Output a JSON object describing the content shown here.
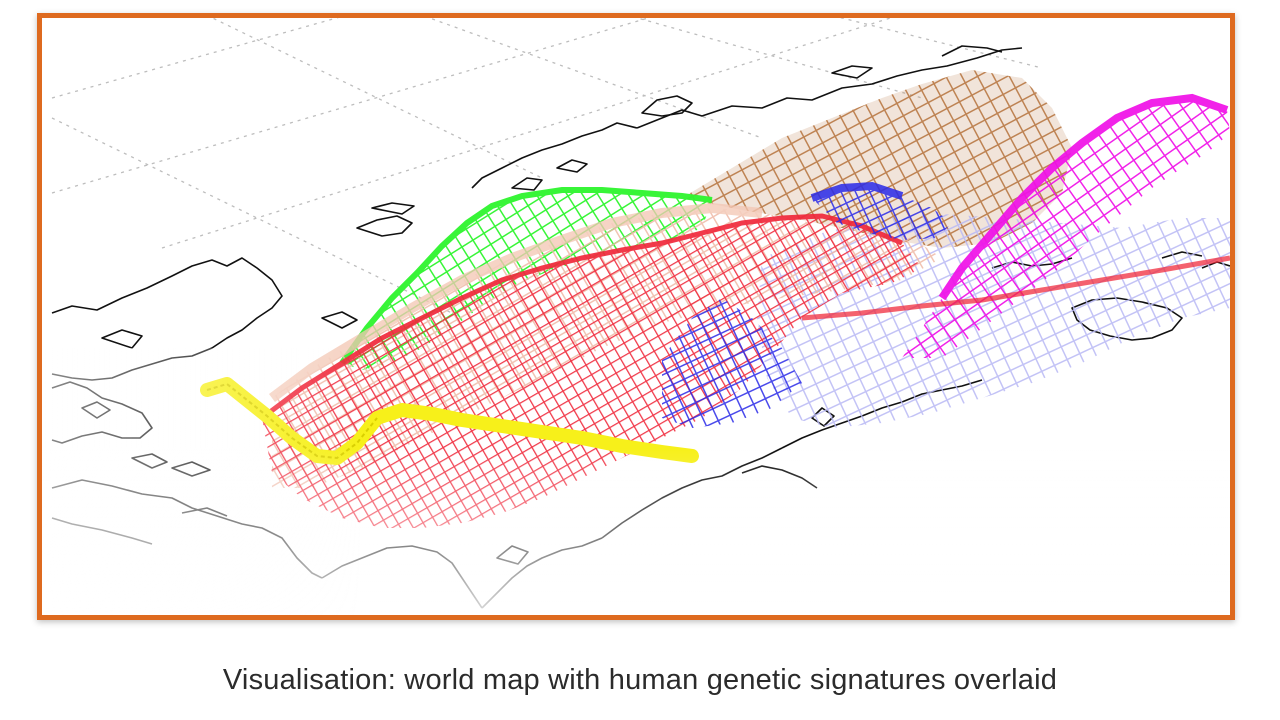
{
  "caption": "Visualisation: world map with human genetic signatures overlaid",
  "colors": {
    "frame_border": "#de6a1f",
    "coastline": "#111111",
    "graticule": "#bdbdbd"
  },
  "overlays": [
    {
      "name": "brown-mesh",
      "color": "#b5703a"
    },
    {
      "name": "green-mesh",
      "color": "#2ef52e"
    },
    {
      "name": "peach-mesh",
      "color": "#efb9a6"
    },
    {
      "name": "red-mesh",
      "color": "#f0283a"
    },
    {
      "name": "blue-mesh",
      "color": "#2a2ae8"
    },
    {
      "name": "lavender-mesh",
      "color": "#b8b8f4"
    },
    {
      "name": "magenta-mesh",
      "color": "#f010e8"
    },
    {
      "name": "yellow-band",
      "color": "#f7f01a"
    }
  ]
}
